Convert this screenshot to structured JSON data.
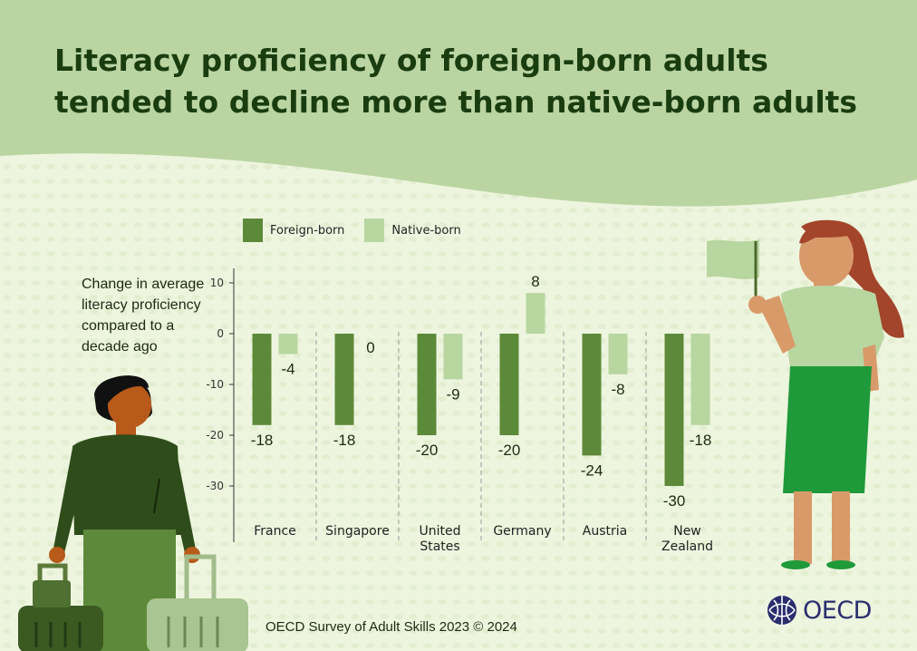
{
  "title": "Literacy proficiency of foreign-born adults tended to decline more than native-born adults",
  "y_axis_label": "Change in average literacy proficiency compared to a decade ago",
  "footer": "OECD Survey of Adult Skills 2023 © 2024",
  "logo_text": "OECD",
  "icons": [
    "oecd-logo-icon",
    "traveler-illustration-icon",
    "suitcase-icon",
    "woman-with-flag-illustration-icon"
  ],
  "colors": {
    "foreign_born": "#5c8a3a",
    "native_born": "#b8d6a0",
    "title_band": "#bad5a2",
    "background": "#eef5df",
    "title_text": "#1a3d10"
  },
  "chart_data": {
    "type": "bar",
    "title": "Literacy proficiency of foreign-born adults tended to decline more than native-born adults",
    "ylabel": "Change in average literacy proficiency compared to a decade ago",
    "xlabel": "",
    "categories": [
      "France",
      "Singapore",
      "United States",
      "Germany",
      "Austria",
      "New Zealand"
    ],
    "category_lines": [
      [
        "France"
      ],
      [
        "Singapore"
      ],
      [
        "United",
        "States"
      ],
      [
        "Germany"
      ],
      [
        "Austria"
      ],
      [
        "New",
        "Zealand"
      ]
    ],
    "series": [
      {
        "name": "Foreign-born",
        "values": [
          -18,
          -18,
          -20,
          -20,
          -24,
          -30
        ]
      },
      {
        "name": "Native-born",
        "values": [
          -4,
          0,
          -9,
          8,
          -8,
          -18
        ]
      }
    ],
    "ylim": [
      -40,
      14
    ],
    "yticks": [
      10,
      0,
      -10,
      -20,
      -30
    ],
    "grid": false,
    "legend": "top"
  }
}
